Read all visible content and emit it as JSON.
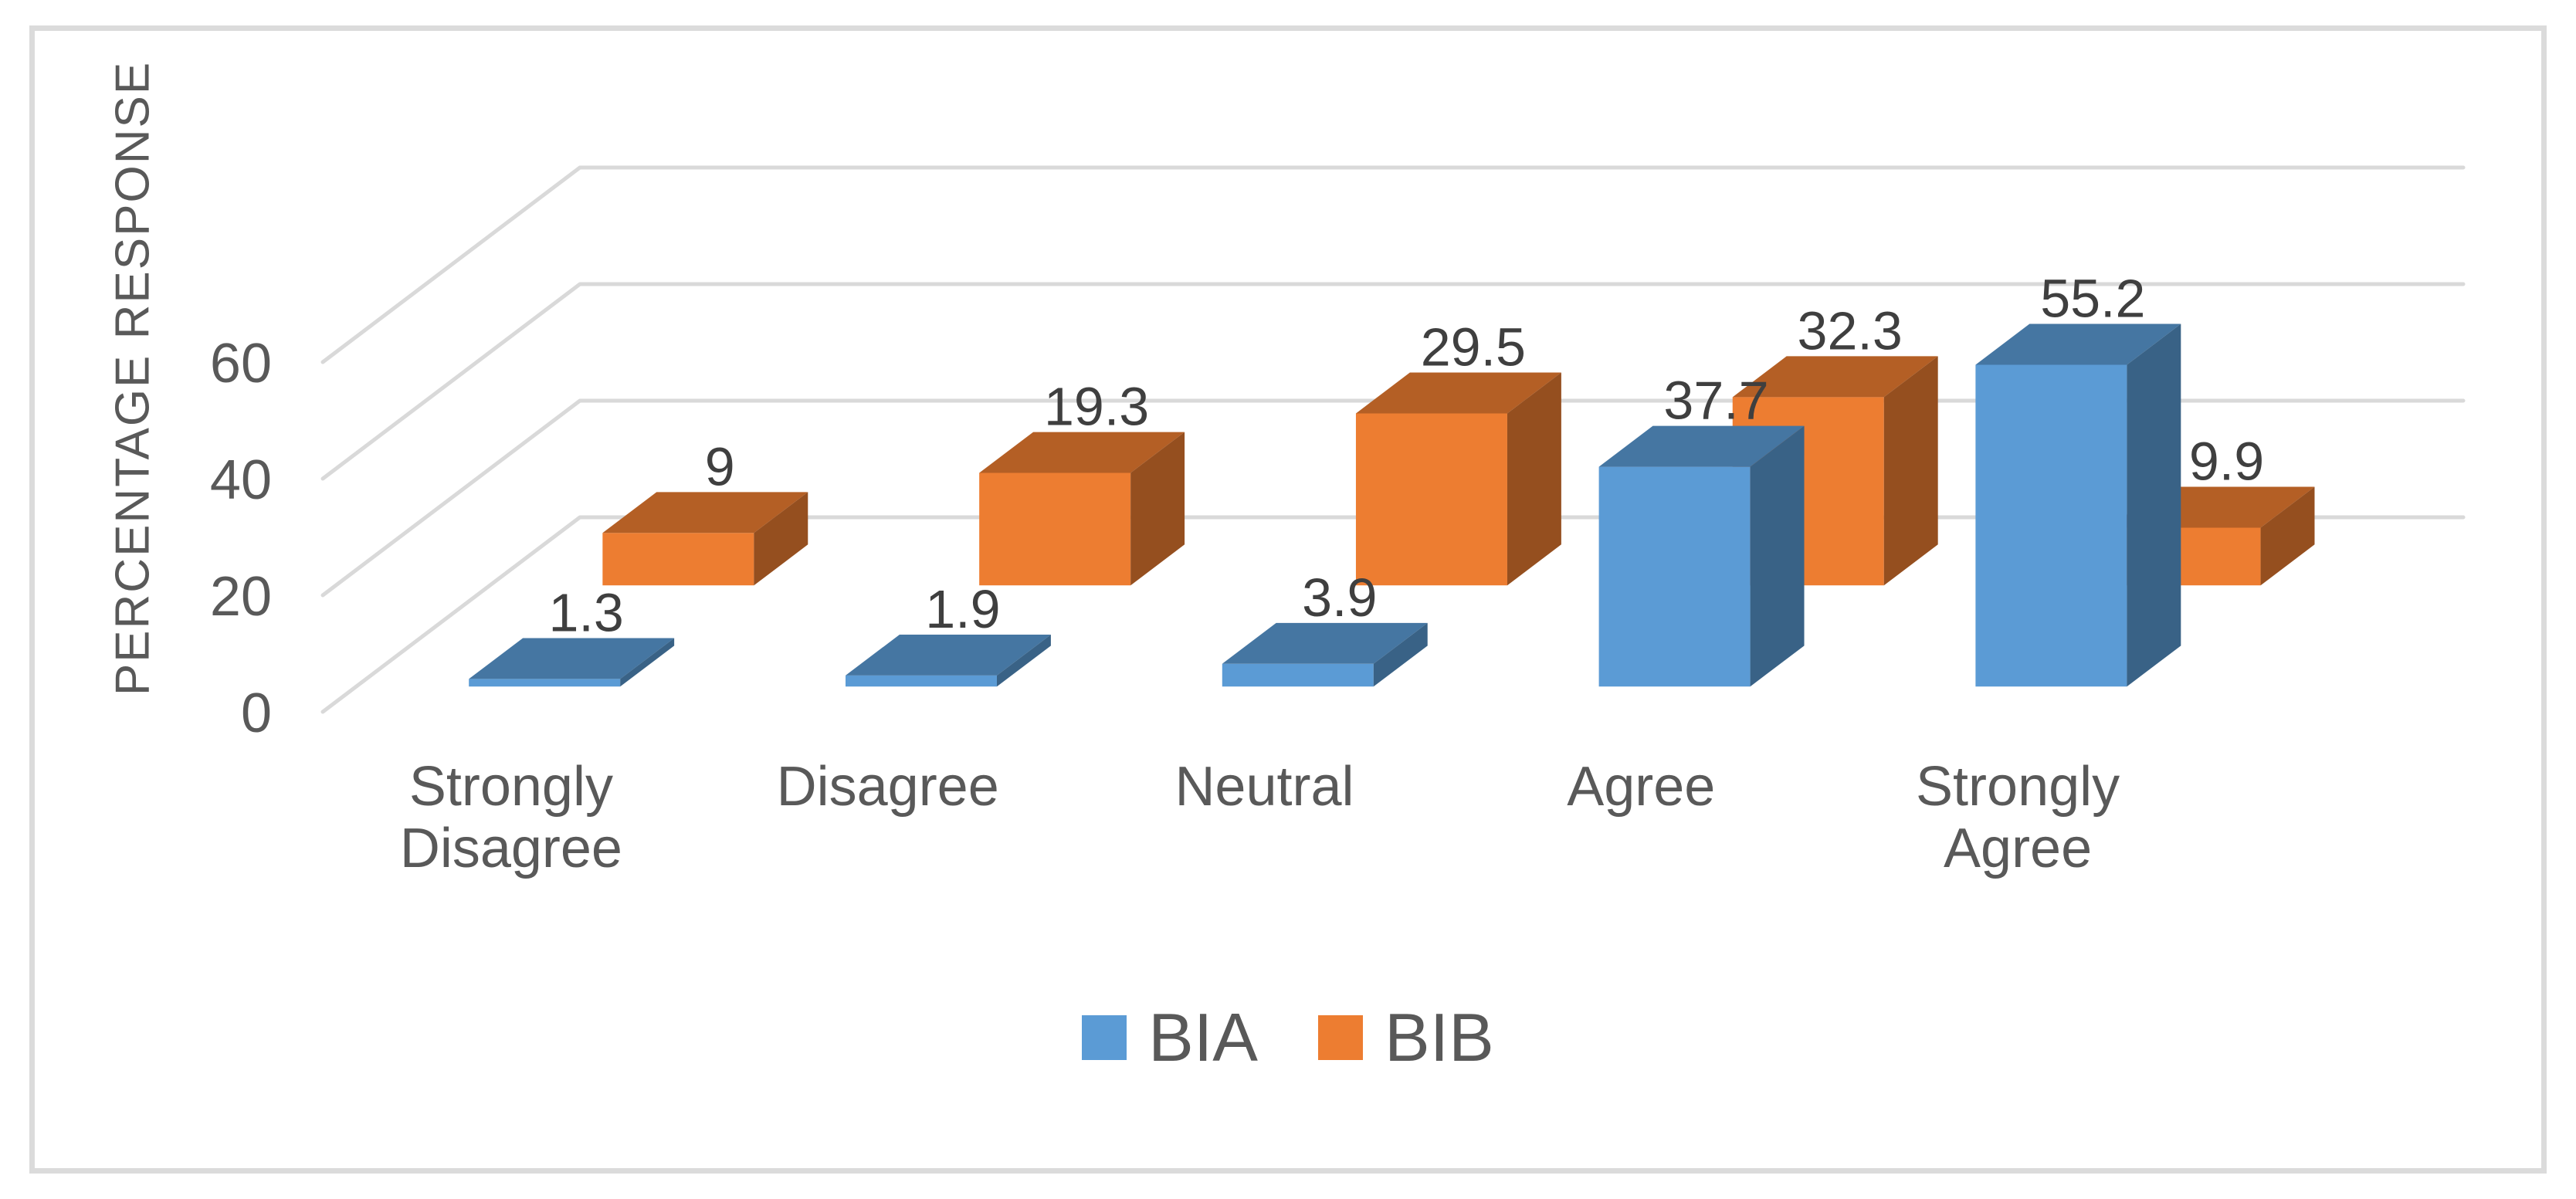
{
  "chart_data": {
    "type": "bar",
    "variant": "3d-clustered-column",
    "title": "",
    "categories": [
      "Strongly Disagree",
      "Disagree",
      "Neutral",
      "Agree",
      "Strongly Agree"
    ],
    "series": [
      {
        "name": "BIA",
        "color": "#5B9BD5",
        "values": [
          1.3,
          1.9,
          3.9,
          37.7,
          55.2
        ]
      },
      {
        "name": "BIB",
        "color": "#ED7D31",
        "values": [
          9,
          19.3,
          29.5,
          32.3,
          9.9
        ]
      }
    ],
    "xlabel": "",
    "ylabel": "PERCENTAGE RESPONSE",
    "yticks": [
      0,
      20,
      40,
      60
    ],
    "ylim": [
      0,
      66
    ],
    "grid": true,
    "legend_position": "bottom",
    "data_labels": true
  },
  "colors": {
    "background": "#FFFFFF",
    "border": "#DBDBDB",
    "gridline": "#D9D9D9",
    "axis_text": "#595959",
    "data_label_text": "#3F3F3F",
    "legend_text": "#595959"
  }
}
